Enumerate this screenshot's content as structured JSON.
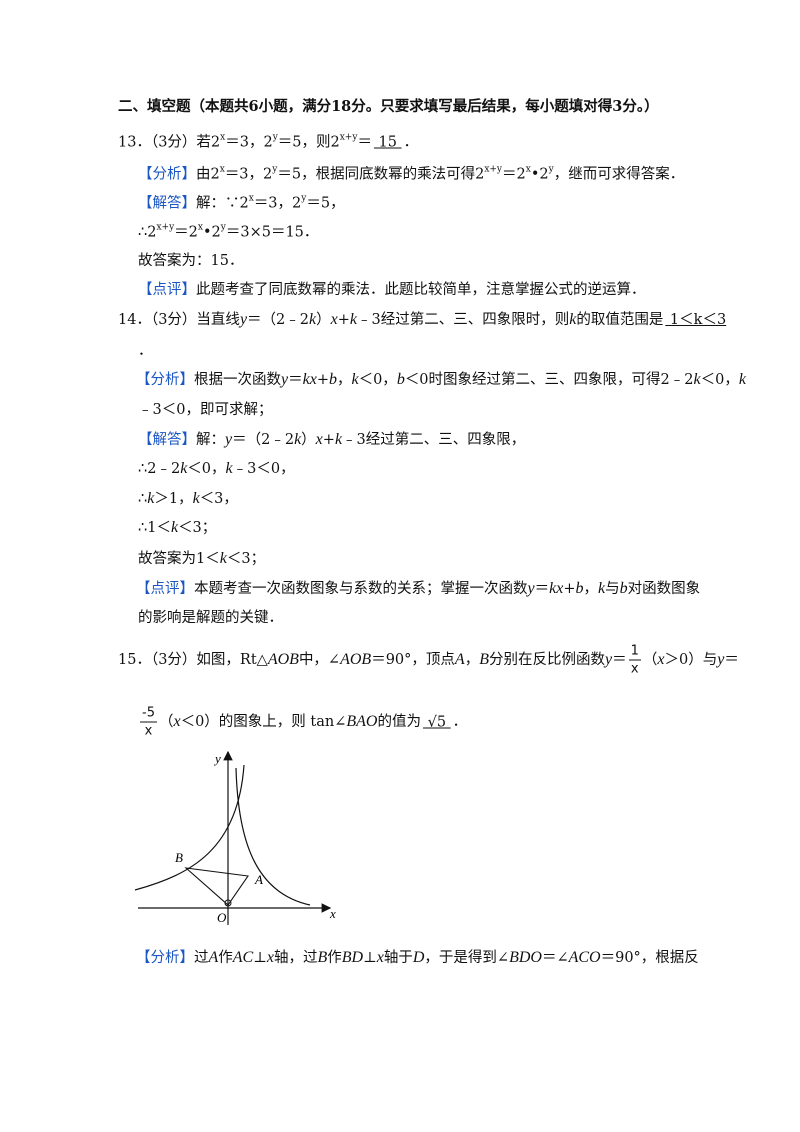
{
  "lines": [
    [
      [
        "二、填空题（本题共6小题，满分18分。只要求填写最后结果，每小题填对得3分。）",
        "b"
      ]
    ],
    [
      "13．（3分）若2",
      [
        "x",
        "sup"
      ],
      "＝3，2",
      [
        "y",
        "sup"
      ],
      "＝5，则2",
      [
        "x+y",
        "sup"
      ],
      "＝",
      [
        "  15  ",
        "u"
      ],
      "．"
    ],
    [
      [
        "【分析】",
        "tag"
      ],
      "由2",
      [
        "x",
        "sup"
      ],
      "＝3，2",
      [
        "y",
        "sup"
      ],
      "＝5，根据同底数幂的乘法可得2",
      [
        "x+y",
        "sup"
      ],
      "＝2",
      [
        "x",
        "sup"
      ],
      "•2",
      [
        "y",
        "sup"
      ],
      "，继而可求得答案．"
    ],
    [
      [
        "【解答】",
        "tag"
      ],
      "解：∵2",
      [
        "x",
        "sup"
      ],
      "＝3，2",
      [
        "y",
        "sup"
      ],
      "＝5，"
    ],
    [
      "∴2",
      [
        "x+y",
        "sup"
      ],
      "＝2",
      [
        "x",
        "sup"
      ],
      "•2",
      [
        "y",
        "sup"
      ],
      "＝3×5＝15．"
    ],
    [
      "故答案为：15．"
    ],
    [
      [
        "【点评】",
        "tag"
      ],
      "此题考查了同底数幂的乘法．此题比较简单，注意掌握公式的逆运算．"
    ],
    [
      "14．（3分）当直线",
      [
        "y",
        "i"
      ],
      "＝（2﹣2",
      [
        "k",
        "i"
      ],
      "）",
      [
        "x",
        "i"
      ],
      "+",
      [
        "k",
        "i"
      ],
      "﹣3经过第二、三、四象限时，则",
      [
        "k",
        "i"
      ],
      "的取值范围是",
      [
        "  1＜k＜3",
        "u"
      ]
    ],
    [
      "．"
    ],
    [
      [
        "【分析】",
        "tag"
      ],
      "根据一次函数",
      [
        "y",
        "i"
      ],
      "＝",
      [
        "kx",
        "i"
      ],
      "+",
      [
        "b",
        "i"
      ],
      "，",
      [
        "k",
        "i"
      ],
      "＜0，",
      [
        "b",
        "i"
      ],
      "＜0时图象经过第二、三、四象限，可得2﹣2",
      [
        "k",
        "i"
      ],
      "＜0，",
      [
        "k",
        "i"
      ]
    ],
    [
      "﹣3＜0，即可求解；"
    ],
    [
      [
        "【解答】",
        "tag"
      ],
      "解：",
      [
        "y",
        "i"
      ],
      "＝（2﹣2",
      [
        "k",
        "i"
      ],
      "）",
      [
        "x",
        "i"
      ],
      "+",
      [
        "k",
        "i"
      ],
      "﹣3经过第二、三、四象限，"
    ],
    [
      "∴2﹣2",
      [
        "k",
        "i"
      ],
      "＜0，",
      [
        "k",
        "i"
      ],
      "﹣3＜0，"
    ],
    [
      "∴",
      [
        "k",
        "i"
      ],
      "＞1，",
      [
        "k",
        "i"
      ],
      "＜3，"
    ],
    [
      "∴1＜",
      [
        "k",
        "i"
      ],
      "＜3；"
    ],
    [
      "故答案为1＜",
      [
        "k",
        "i"
      ],
      "＜3；"
    ],
    [
      [
        "【点评】",
        "tag"
      ],
      "本题考查一次函数图象与系数的关系；掌握一次函数",
      [
        "y",
        "i"
      ],
      "＝",
      [
        "kx",
        "i"
      ],
      "+",
      [
        "b",
        "i"
      ],
      "，",
      [
        "k",
        "i"
      ],
      "与",
      [
        "b",
        "i"
      ],
      "对函数图象"
    ],
    [
      "的影响是解题的关键．"
    ],
    [
      "15．（3分）如图，Rt△",
      [
        "AOB",
        "i"
      ],
      "中，∠",
      [
        "AOB",
        "i"
      ],
      "＝90°，顶点",
      [
        "A",
        "i"
      ],
      "，",
      [
        "B",
        "i"
      ],
      "分别在反比例函数",
      [
        "y",
        "i"
      ],
      "＝",
      {
        "num": "1",
        "den": "x"
      },
      "（",
      [
        "x",
        "i"
      ],
      "＞0）与",
      [
        "y",
        "i"
      ],
      "＝"
    ],
    [
      {
        "num": "-5",
        "den": "x"
      },
      "（",
      [
        "x",
        "i"
      ],
      "＜0）的图象上，则 tan∠",
      [
        "BAO",
        "i"
      ],
      "的值为",
      [
        "  √5  ",
        "u"
      ],
      "．"
    ],
    [
      [
        "【分析】",
        "tag"
      ],
      "过",
      [
        "A",
        "i"
      ],
      "作",
      [
        "AC",
        "i"
      ],
      "⊥",
      [
        "x",
        "i"
      ],
      "轴，过",
      [
        "B",
        "i"
      ],
      "作",
      [
        "BD",
        "i"
      ],
      "⊥",
      [
        "x",
        "i"
      ],
      "轴于",
      [
        "D",
        "i"
      ],
      "，于是得到∠",
      [
        "BDO",
        "i"
      ],
      "＝∠",
      [
        "ACO",
        "i"
      ],
      "＝90°，根据反"
    ]
  ],
  "figure": {
    "labels": [
      "y",
      "x",
      "O",
      "A",
      "B"
    ]
  }
}
